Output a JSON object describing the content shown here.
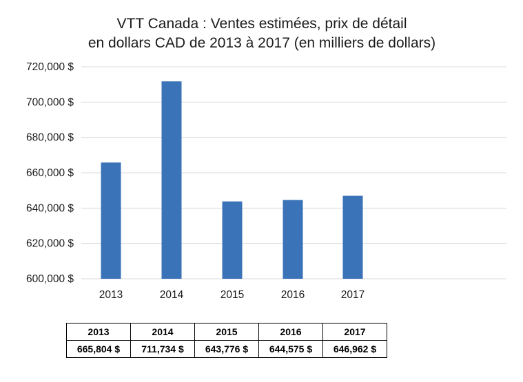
{
  "chart_data": {
    "type": "bar",
    "title_lines": [
      "VTT Canada  : Ventes estimées, prix de détail",
      "en dollars CAD de 2013 à 2017 (en milliers de dollars)"
    ],
    "categories": [
      "2013",
      "2014",
      "2015",
      "2016",
      "2017"
    ],
    "values": [
      665804,
      711734,
      643776,
      644575,
      646962
    ],
    "ylim": [
      600000,
      720000
    ],
    "yticks": [
      {
        "value": 600000,
        "label": "600,000 $"
      },
      {
        "value": 620000,
        "label": "620,000 $"
      },
      {
        "value": 640000,
        "label": "640,000 $"
      },
      {
        "value": 660000,
        "label": "660,000 $"
      },
      {
        "value": 680000,
        "label": "680,000 $"
      },
      {
        "value": 700000,
        "label": "700,000 $"
      },
      {
        "value": 720000,
        "label": "720,000 $"
      }
    ],
    "grid": true,
    "legend": "none",
    "bar_color": "#3a73b8"
  },
  "table": {
    "headers": [
      "2013",
      "2014",
      "2015",
      "2016",
      "2017"
    ],
    "values": [
      "665,804 $",
      "711,734 $",
      "643,776 $",
      "644,575 $",
      "646,962 $"
    ]
  }
}
